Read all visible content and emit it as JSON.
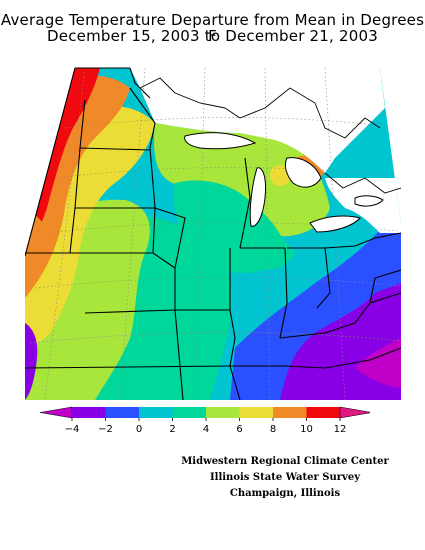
{
  "title": {
    "line1": "Average Temperature Departure from Mean in Degrees F",
    "line2": "December 15, 2003 to December 21, 2003"
  },
  "legend": {
    "tick_labels": [
      "−4",
      "−2",
      "0",
      "2",
      "4",
      "6",
      "8",
      "10",
      "12"
    ],
    "colors": [
      "#8a00e6",
      "#2a50ff",
      "#00c4d0",
      "#00d79a",
      "#a8e63c",
      "#ecdc36",
      "#f08a28",
      "#f00a10"
    ],
    "low_arrow_color": "#c000c8",
    "high_arrow_color": "#e01880"
  },
  "map": {
    "shading": {
      "purple": "#8a00e6",
      "blue": "#2a50ff",
      "cyan": "#00c4d0",
      "seagreen": "#00d79a",
      "green": "#a8e63c",
      "yellow": "#ecdc36",
      "orange": "#f08a28",
      "red": "#f00a10",
      "magenta": "#c000c8"
    }
  },
  "credits": {
    "line1": "Midwestern Regional Climate Center",
    "line2": "Illinois State Water Survey",
    "line3": "Champaign, Illinois"
  }
}
